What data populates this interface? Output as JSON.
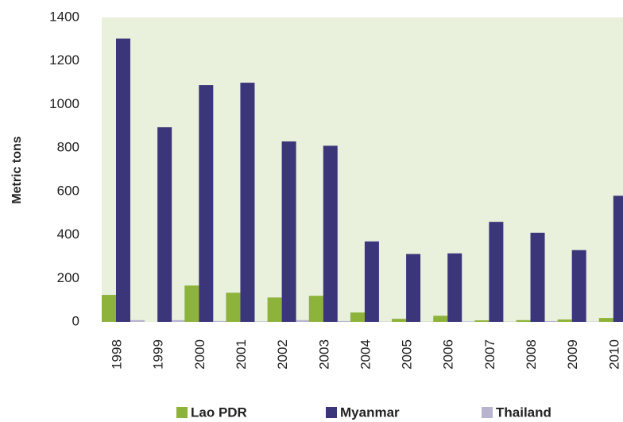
{
  "chart_data": {
    "type": "bar",
    "y_label": "Metric tons",
    "categories": [
      "1998",
      "1999",
      "2000",
      "2001",
      "2002",
      "2003",
      "2004",
      "2005",
      "2006",
      "2007",
      "2008",
      "2009",
      "2010"
    ],
    "series": [
      {
        "name": "Lao PDR",
        "color": "#8db33a",
        "values": [
          124,
          0,
          167,
          134,
          112,
          120,
          43,
          14,
          28,
          7,
          8,
          11,
          18
        ]
      },
      {
        "name": "Myanmar",
        "color": "#3b3679",
        "values": [
          1303,
          895,
          1089,
          1100,
          830,
          810,
          370,
          312,
          315,
          460,
          410,
          330,
          580
        ]
      },
      {
        "name": "Thailand",
        "color": "#b8b4d0",
        "values": [
          8,
          8,
          4,
          2,
          8,
          4,
          1,
          1,
          2,
          1,
          4,
          1,
          1
        ]
      }
    ],
    "ylim": [
      0,
      1400
    ],
    "yticks": [
      0,
      200,
      400,
      600,
      800,
      1000,
      1200,
      1400
    ],
    "grid": false,
    "legend": "bottom",
    "plot_background": "#e9f0dc"
  }
}
